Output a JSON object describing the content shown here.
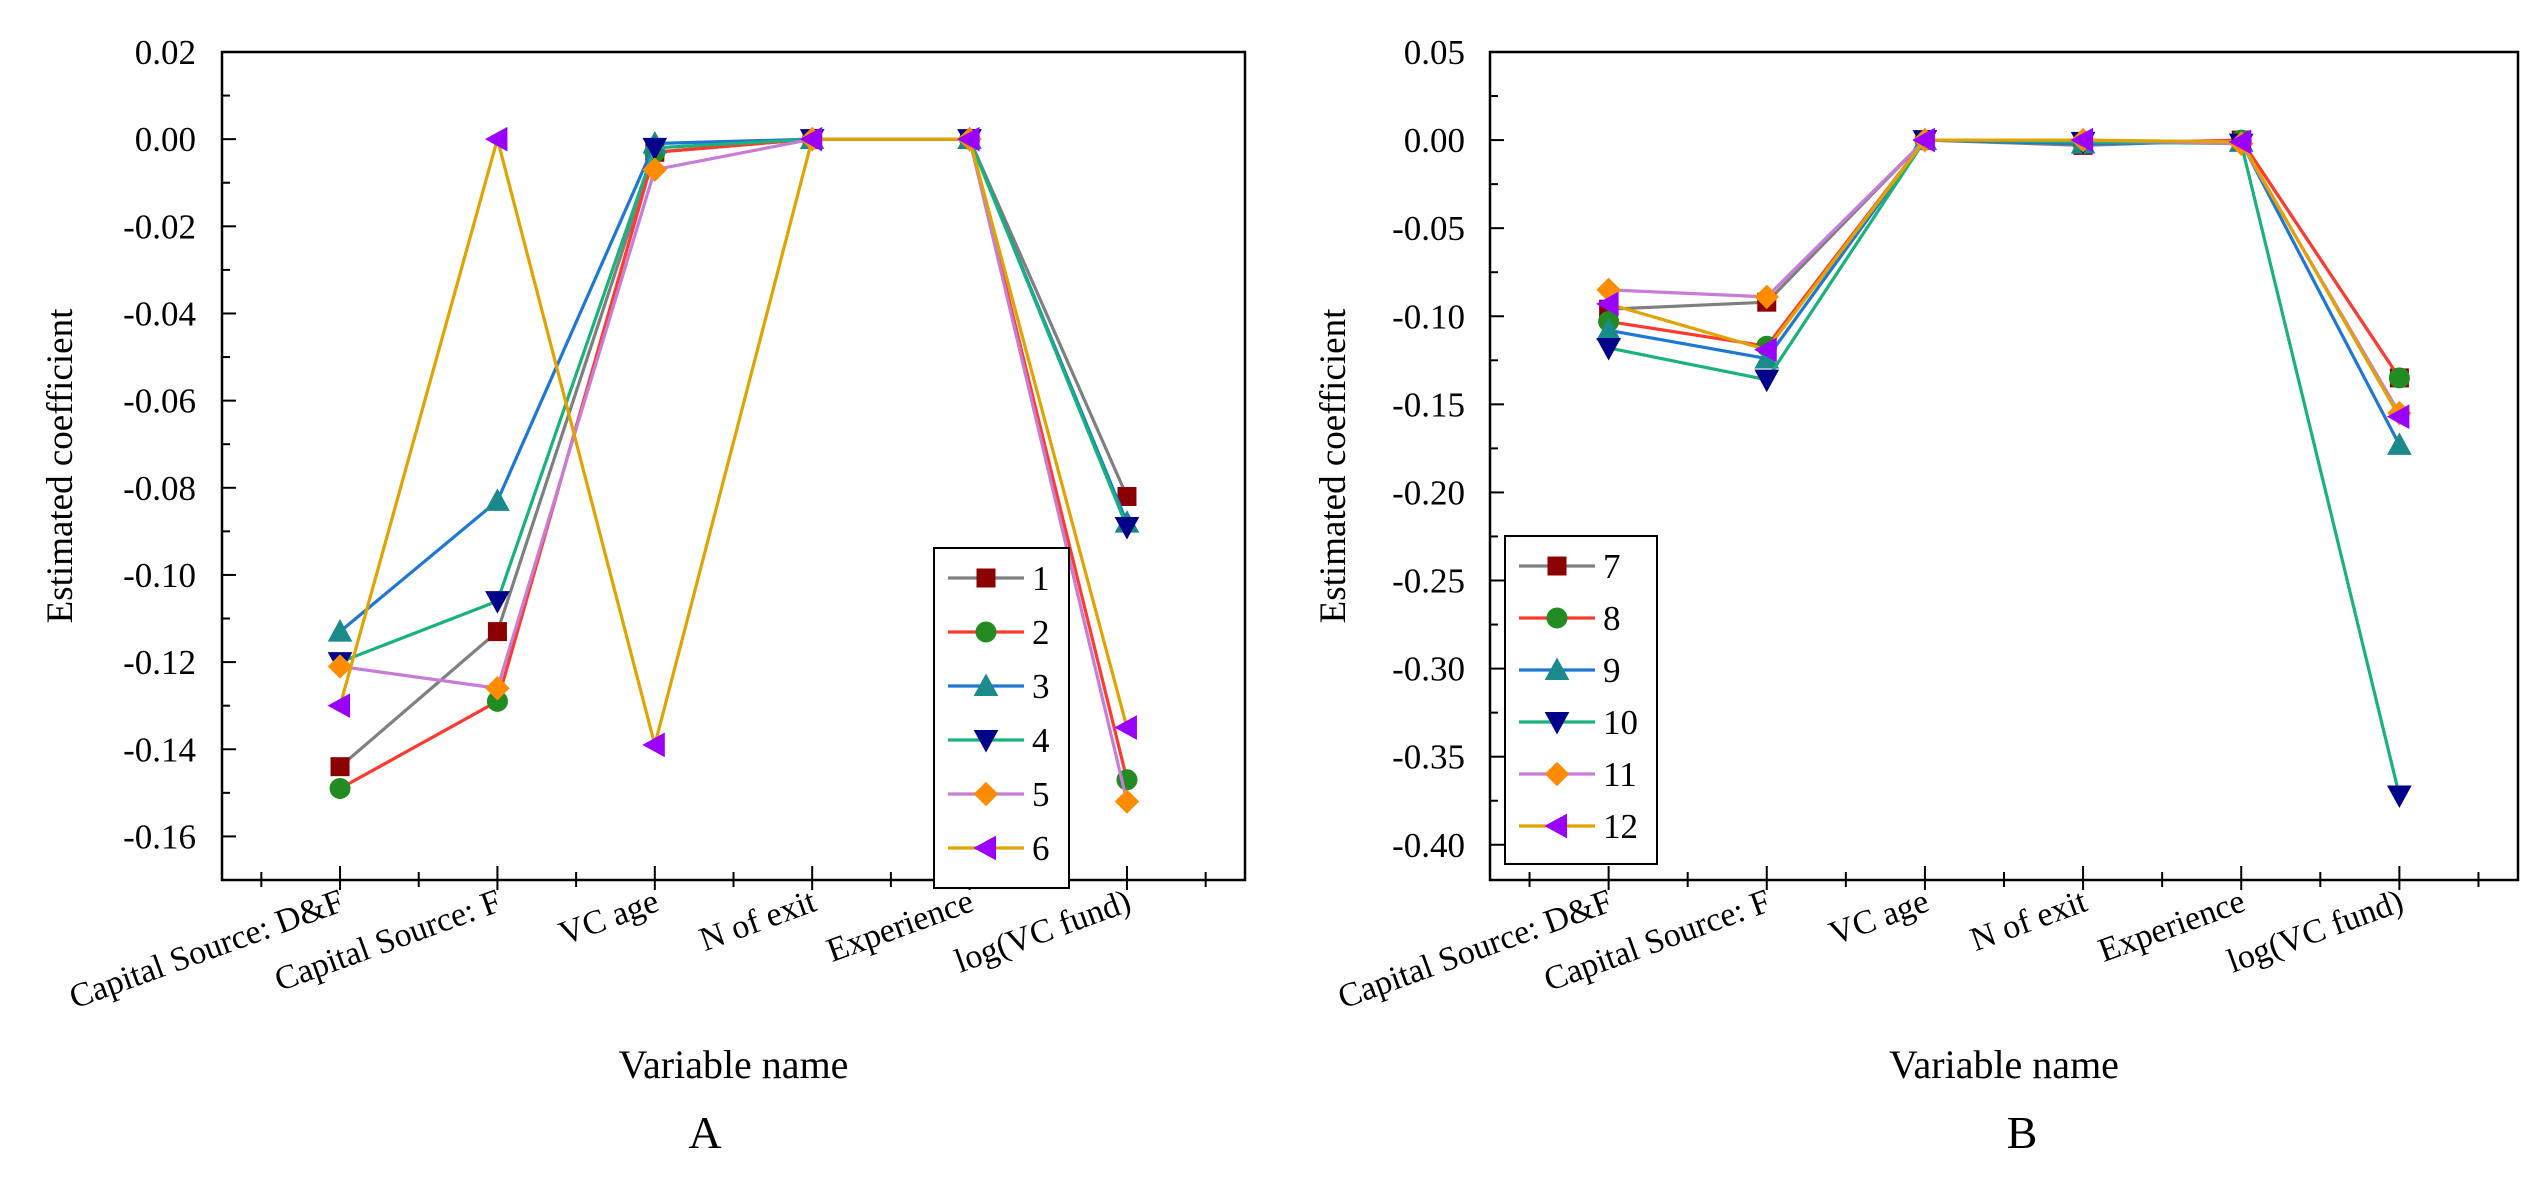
{
  "chart_data": [
    {
      "panel_label": "A",
      "type": "line",
      "xlabel": "Variable name",
      "ylabel": "Estimated coefficient",
      "categories": [
        "Capital Source: D&F",
        "Capital Source: F",
        "VC age",
        "N of exit",
        "Experience",
        "log(VC fund)"
      ],
      "ylim": [
        -0.17,
        0.02
      ],
      "yticks": [
        0.02,
        0.0,
        -0.02,
        -0.04,
        -0.06,
        -0.08,
        -0.1,
        -0.12,
        -0.14,
        -0.16
      ],
      "ytick_labels": [
        "0.02",
        "0.00",
        "-0.02",
        "-0.04",
        "-0.06",
        "-0.08",
        "-0.10",
        "-0.12",
        "-0.14",
        "-0.16"
      ],
      "legend_position": "bottom-right",
      "grid": false,
      "series": [
        {
          "name": "1",
          "color": "#7f7f7f",
          "marker_color": "#8b0000",
          "marker": "square",
          "values": [
            -0.144,
            -0.113,
            -0.003,
            0.0,
            0.0,
            -0.082
          ]
        },
        {
          "name": "2",
          "color": "#ff3b30",
          "marker_color": "#228b22",
          "marker": "circle",
          "values": [
            -0.149,
            -0.129,
            -0.003,
            0.0,
            0.0,
            -0.147
          ]
        },
        {
          "name": "3",
          "color": "#1f77d4",
          "marker_color": "#1a8a8a",
          "marker": "triangle-up",
          "values": [
            -0.113,
            -0.083,
            -0.001,
            0.0,
            0.0,
            -0.088
          ]
        },
        {
          "name": "4",
          "color": "#19b27b",
          "marker_color": "#00008b",
          "marker": "triangle-down",
          "values": [
            -0.12,
            -0.106,
            -0.002,
            0.0,
            0.0,
            -0.089
          ]
        },
        {
          "name": "5",
          "color": "#c77dd8",
          "marker_color": "#ff8c00",
          "marker": "diamond",
          "values": [
            -0.121,
            -0.126,
            -0.007,
            0.0,
            0.0,
            -0.152
          ]
        },
        {
          "name": "6",
          "color": "#e0a300",
          "marker_color": "#9b00ff",
          "marker": "triangle-left",
          "values": [
            -0.13,
            0.0,
            -0.139,
            0.0,
            0.0,
            -0.135
          ]
        }
      ]
    },
    {
      "panel_label": "B",
      "type": "line",
      "xlabel": "Variable name",
      "ylabel": "Estimated coefficient",
      "categories": [
        "Capital Source: D&F",
        "Capital Source: F",
        "VC age",
        "N of exit",
        "Experience",
        "log(VC fund)"
      ],
      "ylim": [
        -0.42,
        0.05
      ],
      "yticks": [
        0.05,
        0.0,
        -0.05,
        -0.1,
        -0.15,
        -0.2,
        -0.25,
        -0.3,
        -0.35,
        -0.4
      ],
      "ytick_labels": [
        "0.05",
        "0.00",
        "-0.05",
        "-0.10",
        "-0.15",
        "-0.20",
        "-0.25",
        "-0.30",
        "-0.35",
        "-0.40"
      ],
      "legend_position": "bottom-left",
      "grid": false,
      "series": [
        {
          "name": "7",
          "color": "#7f7f7f",
          "marker_color": "#8b0000",
          "marker": "square",
          "values": [
            -0.096,
            -0.092,
            0.0,
            -0.003,
            0.0,
            -0.135
          ]
        },
        {
          "name": "8",
          "color": "#ff3b30",
          "marker_color": "#228b22",
          "marker": "circle",
          "values": [
            -0.103,
            -0.117,
            0.0,
            -0.002,
            0.0,
            -0.135
          ]
        },
        {
          "name": "9",
          "color": "#1f77d4",
          "marker_color": "#1a8a8a",
          "marker": "triangle-up",
          "values": [
            -0.108,
            -0.124,
            0.0,
            -0.002,
            -0.001,
            -0.173
          ]
        },
        {
          "name": "10",
          "color": "#19b27b",
          "marker_color": "#00008b",
          "marker": "triangle-down",
          "values": [
            -0.118,
            -0.136,
            0.0,
            -0.001,
            -0.002,
            -0.372
          ]
        },
        {
          "name": "11",
          "color": "#c77dd8",
          "marker_color": "#ff8c00",
          "marker": "diamond",
          "values": [
            -0.085,
            -0.089,
            0.0,
            0.0,
            -0.002,
            -0.155
          ]
        },
        {
          "name": "12",
          "color": "#e0a300",
          "marker_color": "#9b00ff",
          "marker": "triangle-left",
          "values": [
            -0.093,
            -0.119,
            0.0,
            0.0,
            -0.001,
            -0.157
          ]
        }
      ]
    }
  ]
}
